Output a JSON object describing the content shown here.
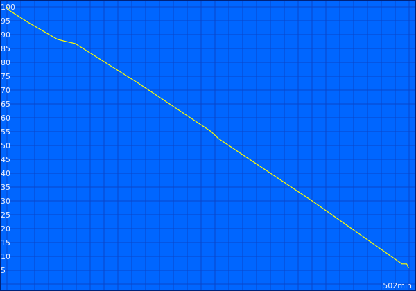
{
  "chart_data": {
    "type": "line",
    "title": "",
    "xlabel": "",
    "ylabel": "",
    "x_end_label": "502min",
    "xlim": [
      0,
      502
    ],
    "ylim": [
      0,
      100
    ],
    "yticks": [
      5,
      10,
      15,
      20,
      25,
      30,
      35,
      40,
      45,
      50,
      55,
      60,
      65,
      70,
      75,
      80,
      85,
      90,
      95,
      100
    ],
    "grid": true,
    "colors": {
      "background": "#0066ff",
      "grid": "#0a45c8",
      "line": "#ffff00",
      "frame": "#00227a",
      "text": "#e8eeff"
    },
    "series": [
      {
        "x": [
          0,
          2.6,
          26,
          63,
          74,
          85,
          164,
          255,
          264,
          381,
          493,
          499,
          501,
          502
        ],
        "y": [
          100,
          98.8,
          94.5,
          88.3,
          87.5,
          86.8,
          72.5,
          55,
          52.5,
          30,
          7.3,
          7.3,
          6,
          6
        ]
      }
    ]
  }
}
